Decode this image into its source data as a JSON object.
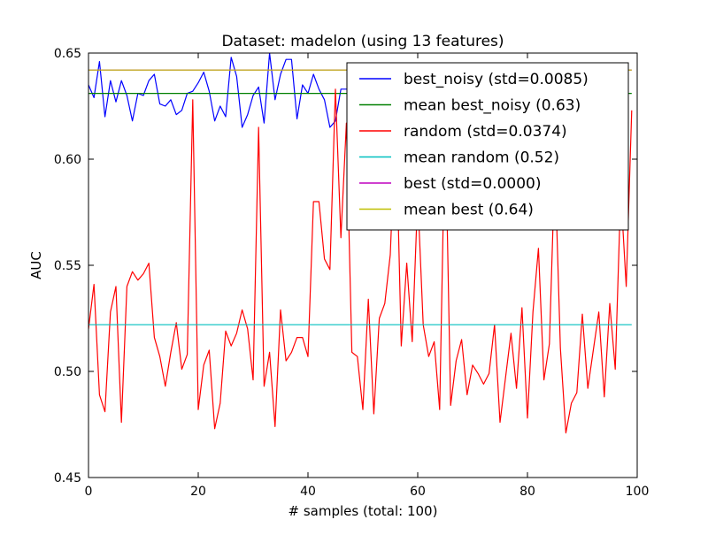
{
  "chart_data": {
    "type": "line",
    "title": "Dataset: madelon (using 13 features)",
    "xlabel": "# samples (total: 100)",
    "ylabel": "AUC",
    "xlim": [
      0,
      100
    ],
    "ylim": [
      0.45,
      0.65
    ],
    "xticks": [
      0,
      20,
      40,
      60,
      80,
      100
    ],
    "xtick_labels": [
      "0",
      "20",
      "40",
      "60",
      "80",
      "100"
    ],
    "yticks": [
      0.45,
      0.5,
      0.55,
      0.6,
      0.65
    ],
    "ytick_labels": [
      "0.45",
      "0.50",
      "0.55",
      "0.60",
      "0.65"
    ],
    "grid": false,
    "legend_position": "top-right",
    "series": [
      {
        "name": "best_noisy (std=0.0085)",
        "color": "#0000ff",
        "x": [
          0,
          1,
          2,
          3,
          4,
          5,
          6,
          7,
          8,
          9,
          10,
          11,
          12,
          13,
          14,
          15,
          16,
          17,
          18,
          19,
          20,
          21,
          22,
          23,
          24,
          25,
          26,
          27,
          28,
          29,
          30,
          31,
          32,
          33,
          34,
          35,
          36,
          37,
          38,
          39,
          40,
          41,
          42,
          43,
          44,
          45,
          46,
          47,
          48,
          49,
          50
        ],
        "y": [
          0.635,
          0.629,
          0.646,
          0.62,
          0.637,
          0.627,
          0.637,
          0.63,
          0.618,
          0.631,
          0.63,
          0.637,
          0.64,
          0.626,
          0.625,
          0.628,
          0.621,
          0.623,
          0.631,
          0.632,
          0.636,
          0.641,
          0.632,
          0.618,
          0.625,
          0.62,
          0.648,
          0.639,
          0.615,
          0.621,
          0.63,
          0.634,
          0.617,
          0.65,
          0.628,
          0.64,
          0.647,
          0.647,
          0.619,
          0.635,
          0.631,
          0.64,
          0.633,
          0.628,
          0.615,
          0.618,
          0.633,
          0.633,
          0.633,
          0.632,
          0.633
        ]
      },
      {
        "name": "mean best_noisy (0.63)",
        "color": "#008000",
        "x": [
          0,
          99
        ],
        "y": [
          0.631,
          0.631
        ]
      },
      {
        "name": "random (std=0.0374)",
        "color": "#ff0000",
        "x": [
          0,
          1,
          2,
          3,
          4,
          5,
          6,
          7,
          8,
          9,
          10,
          11,
          12,
          13,
          14,
          15,
          16,
          17,
          18,
          19,
          20,
          21,
          22,
          23,
          24,
          25,
          26,
          27,
          28,
          29,
          30,
          31,
          32,
          33,
          34,
          35,
          36,
          37,
          38,
          39,
          40,
          41,
          42,
          43,
          44,
          45,
          46,
          47,
          48,
          49,
          50,
          51,
          52,
          53,
          54,
          55,
          56,
          57,
          58,
          59,
          60,
          61,
          62,
          63,
          64,
          65,
          66,
          67,
          68,
          69,
          70,
          71,
          72,
          73,
          74,
          75,
          76,
          77,
          78,
          79,
          80,
          81,
          82,
          83,
          84,
          85,
          86,
          87,
          88,
          89,
          90,
          91,
          92,
          93,
          94,
          95,
          96,
          97,
          98,
          99
        ],
        "y": [
          0.52,
          0.541,
          0.489,
          0.481,
          0.528,
          0.54,
          0.476,
          0.54,
          0.547,
          0.543,
          0.546,
          0.551,
          0.516,
          0.507,
          0.493,
          0.509,
          0.523,
          0.501,
          0.508,
          0.628,
          0.482,
          0.503,
          0.51,
          0.473,
          0.485,
          0.519,
          0.512,
          0.518,
          0.529,
          0.52,
          0.496,
          0.615,
          0.493,
          0.509,
          0.474,
          0.529,
          0.505,
          0.509,
          0.516,
          0.516,
          0.507,
          0.58,
          0.58,
          0.553,
          0.548,
          0.633,
          0.563,
          0.617,
          0.509,
          0.507,
          0.482,
          0.534,
          0.48,
          0.525,
          0.532,
          0.555,
          0.62,
          0.512,
          0.551,
          0.514,
          0.583,
          0.522,
          0.507,
          0.514,
          0.482,
          0.62,
          0.484,
          0.505,
          0.515,
          0.489,
          0.503,
          0.499,
          0.494,
          0.499,
          0.522,
          0.476,
          0.497,
          0.518,
          0.492,
          0.53,
          0.478,
          0.528,
          0.558,
          0.496,
          0.513,
          0.598,
          0.511,
          0.471,
          0.485,
          0.49,
          0.527,
          0.492,
          0.51,
          0.528,
          0.488,
          0.532,
          0.501,
          0.585,
          0.54,
          0.623
        ]
      },
      {
        "name": "mean random (0.52)",
        "color": "#00bfbf",
        "x": [
          0,
          99
        ],
        "y": [
          0.522,
          0.522
        ]
      },
      {
        "name": "best (std=0.0000)",
        "color": "#bf00bf",
        "x": [
          0,
          99
        ],
        "y": [
          0.642,
          0.642
        ]
      },
      {
        "name": "mean best (0.64)",
        "color": "#bfbf00",
        "x": [
          0,
          99
        ],
        "y": [
          0.642,
          0.642
        ]
      }
    ]
  }
}
